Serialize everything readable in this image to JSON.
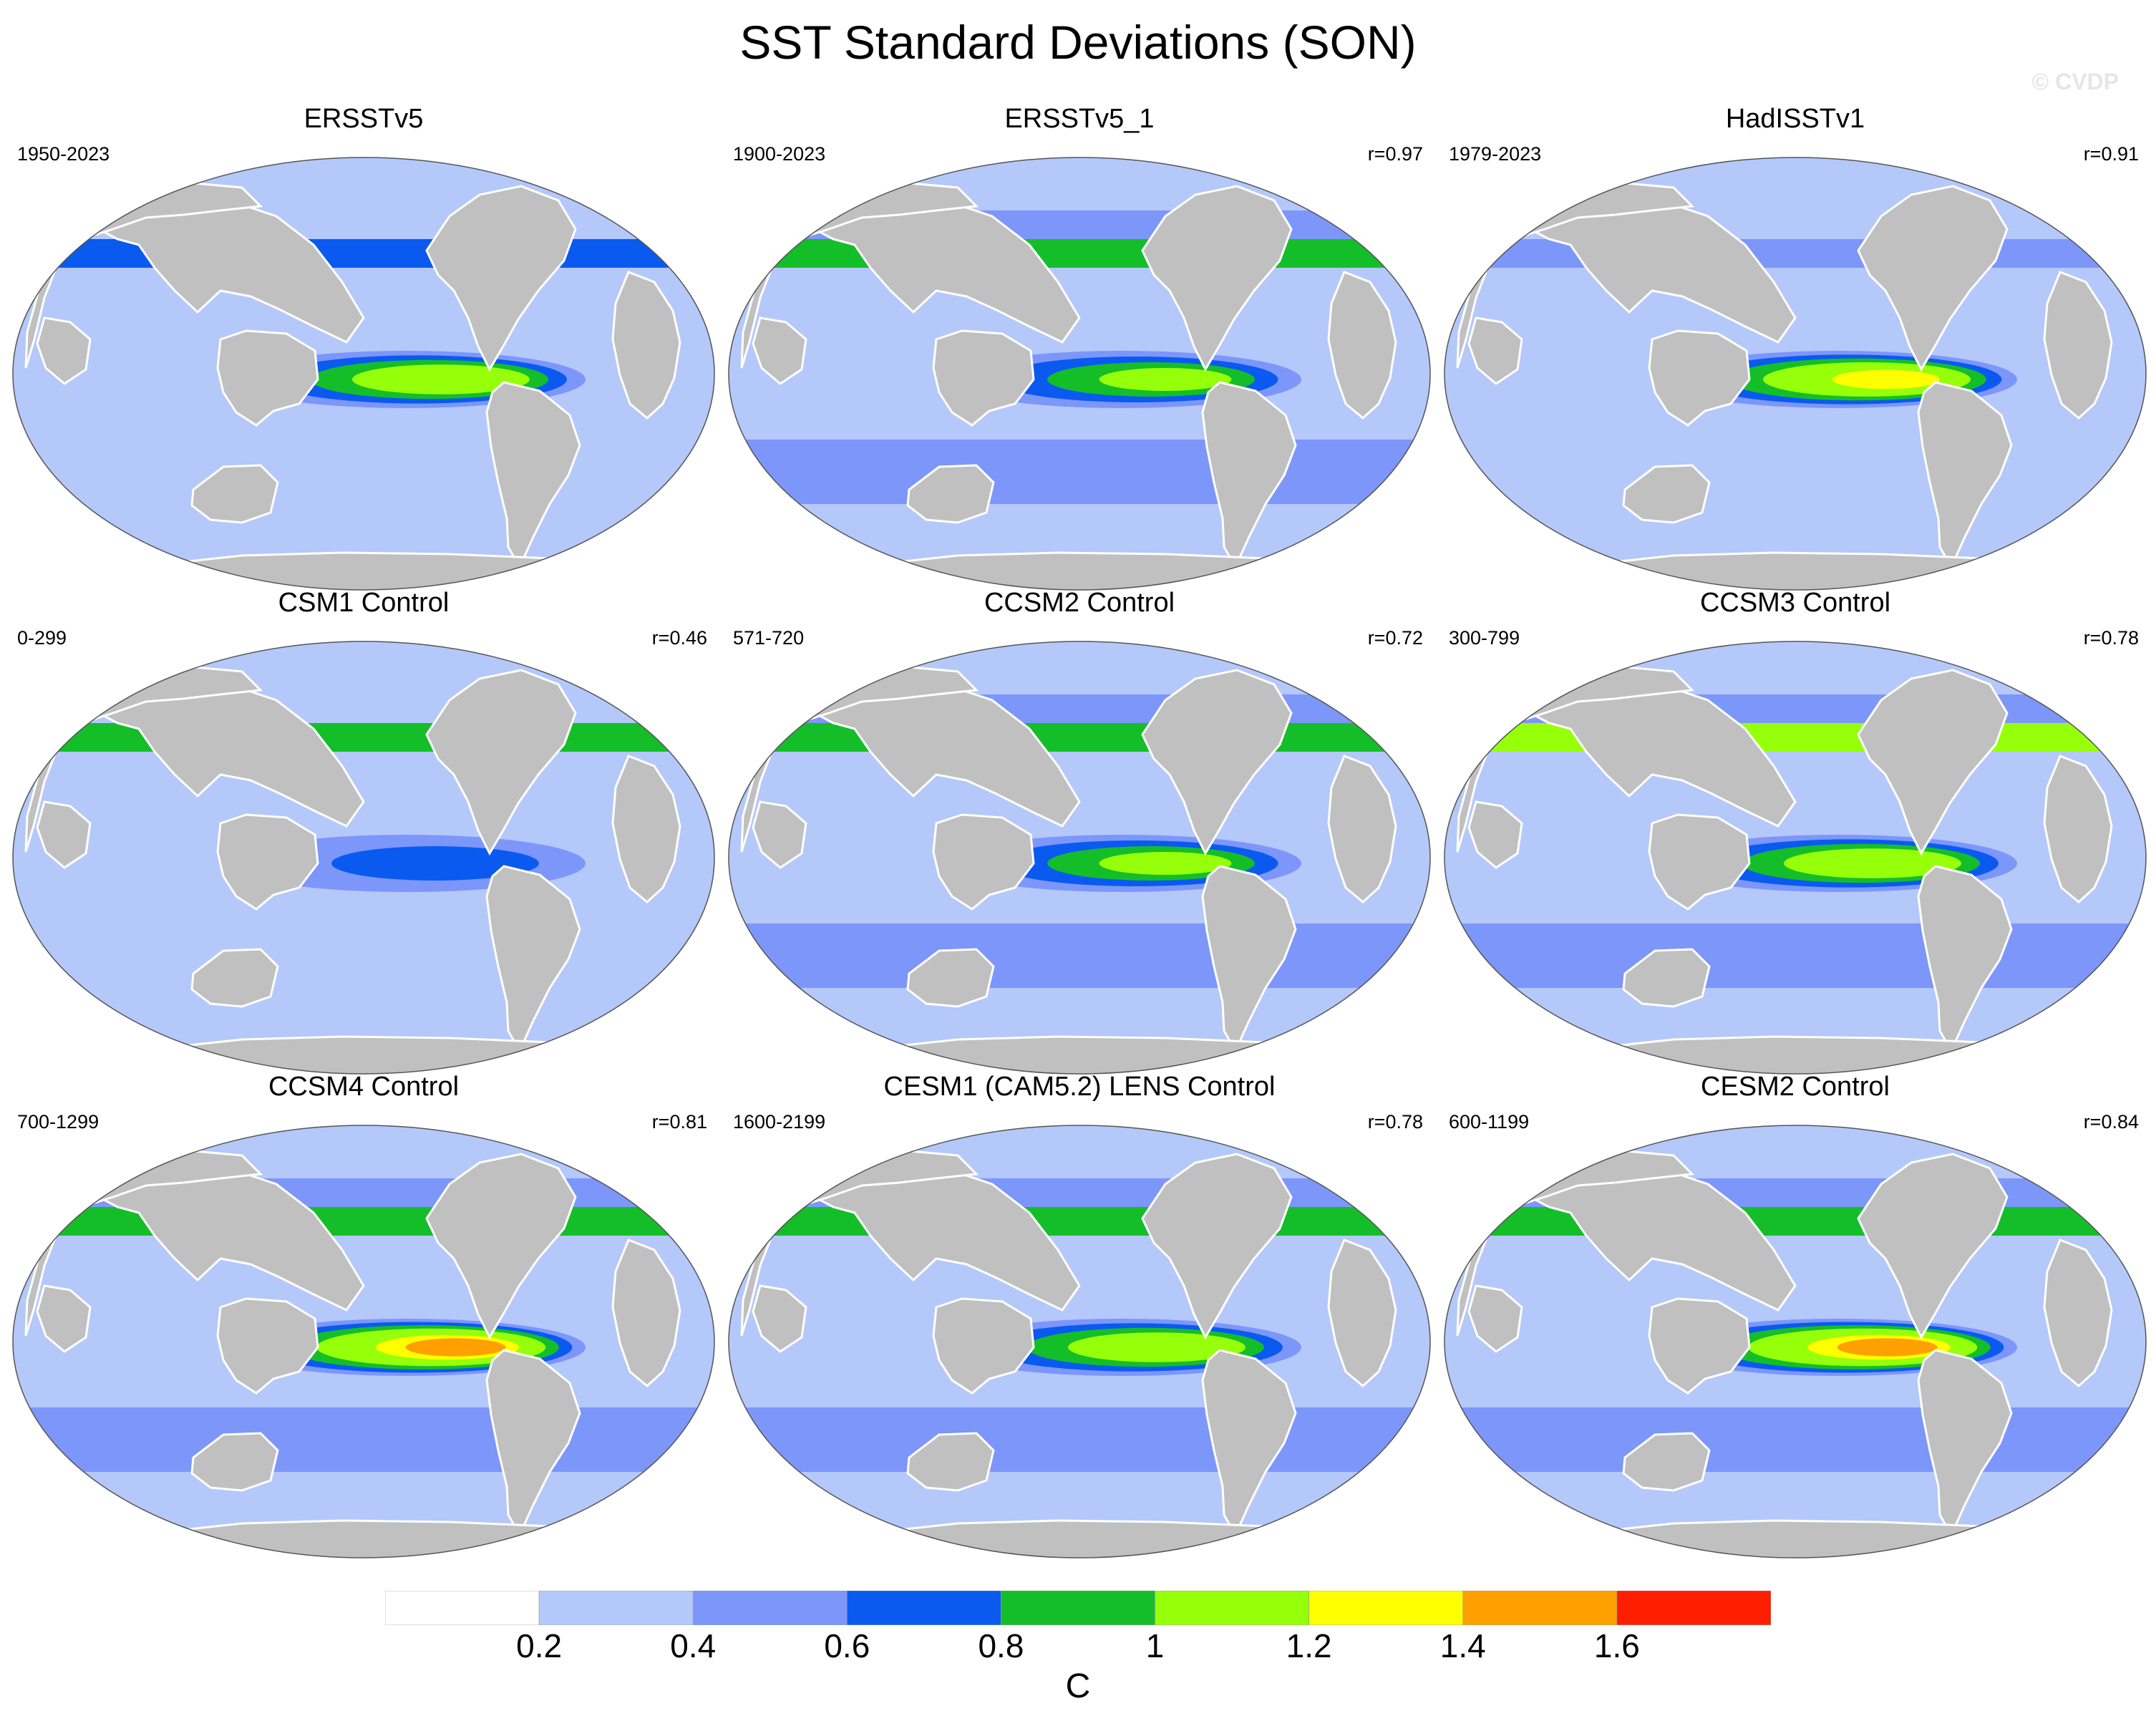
{
  "title": "SST Standard Deviations (SON)",
  "watermark": "© CVDP",
  "panels": [
    {
      "name": "ERSSTv5",
      "years": "1950-2023",
      "r": "",
      "zonal": [
        0.3,
        0.38,
        0.68,
        0.3
      ],
      "enso": 1.25
    },
    {
      "name": "ERSSTv5_1",
      "years": "1900-2023",
      "r": "r=0.97",
      "zonal": [
        0.35,
        0.45,
        0.85,
        0.32
      ],
      "enso": 1.15
    },
    {
      "name": "HadISSTv1",
      "years": "1979-2023",
      "r": "r=0.91",
      "zonal": [
        0.25,
        0.32,
        0.6,
        0.22
      ],
      "enso": 1.45
    },
    {
      "name": "CSM1 Control",
      "years": "0-299",
      "r": "r=0.46",
      "zonal": [
        0.25,
        0.32,
        0.9,
        0.28
      ],
      "enso": 0.7
    },
    {
      "name": "CCSM2 Control",
      "years": "571-720",
      "r": "r=0.72",
      "zonal": [
        0.35,
        0.48,
        0.8,
        0.3
      ],
      "enso": 1.0
    },
    {
      "name": "CCSM3 Control",
      "years": "300-799",
      "r": "r=0.78",
      "zonal": [
        0.3,
        0.4,
        1.1,
        0.35
      ],
      "enso": 1.25
    },
    {
      "name": "CCSM4 Control",
      "years": "700-1299",
      "r": "r=0.81",
      "zonal": [
        0.35,
        0.45,
        0.9,
        0.35
      ],
      "enso": 1.65
    },
    {
      "name": "CESM1 (CAM5.2) LENS Control",
      "years": "1600-2199",
      "r": "r=0.78",
      "zonal": [
        0.35,
        0.45,
        0.9,
        0.35
      ],
      "enso": 1.3
    },
    {
      "name": "CESM2 Control",
      "years": "600-1199",
      "r": "r=0.84",
      "zonal": [
        0.35,
        0.45,
        0.8,
        0.33
      ],
      "enso": 1.65
    }
  ],
  "colorbar": {
    "colors": [
      "#ffffff",
      "#b4c8fa",
      "#7d96fa",
      "#0a5af0",
      "#14be28",
      "#96ff0a",
      "#ffff00",
      "#ffa000",
      "#ff1e00"
    ],
    "tick_labels": [
      "0.2",
      "0.4",
      "0.6",
      "0.8",
      "1",
      "1.2",
      "1.4",
      "1.6"
    ],
    "unit": "C"
  },
  "land_color": "#c0c0c0"
}
